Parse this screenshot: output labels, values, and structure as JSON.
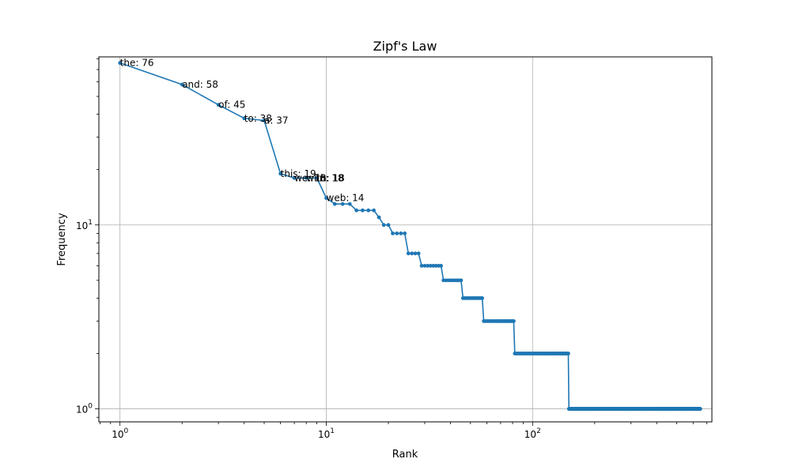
{
  "chart_data": {
    "type": "line",
    "title": "Zipf's Law",
    "xlabel": "Rank",
    "ylabel": "Frequency",
    "xscale": "log",
    "yscale": "log",
    "xlim": [
      0.79,
      740
    ],
    "ylim": [
      0.85,
      82
    ],
    "grid": true,
    "x_ticks": [
      {
        "base": "10",
        "exp": "0",
        "value": 1
      },
      {
        "base": "10",
        "exp": "1",
        "value": 10
      },
      {
        "base": "10",
        "exp": "2",
        "value": 100
      }
    ],
    "y_ticks": [
      {
        "base": "10",
        "exp": "0",
        "value": 1
      },
      {
        "base": "10",
        "exp": "1",
        "value": 10
      }
    ],
    "color": "#1f77b4",
    "steps": [
      {
        "from": 1,
        "to": 1,
        "value": 76
      },
      {
        "from": 2,
        "to": 2,
        "value": 58
      },
      {
        "from": 3,
        "to": 3,
        "value": 45
      },
      {
        "from": 4,
        "to": 4,
        "value": 38
      },
      {
        "from": 5,
        "to": 5,
        "value": 37
      },
      {
        "from": 6,
        "to": 6,
        "value": 19
      },
      {
        "from": 7,
        "to": 9,
        "value": 18
      },
      {
        "from": 10,
        "to": 10,
        "value": 14
      },
      {
        "from": 11,
        "to": 13,
        "value": 13
      },
      {
        "from": 14,
        "to": 17,
        "value": 12
      },
      {
        "from": 18,
        "to": 18,
        "value": 11
      },
      {
        "from": 19,
        "to": 20,
        "value": 10
      },
      {
        "from": 21,
        "to": 24,
        "value": 9
      },
      {
        "from": 25,
        "to": 28,
        "value": 7
      },
      {
        "from": 29,
        "to": 36,
        "value": 6
      },
      {
        "from": 37,
        "to": 45,
        "value": 5
      },
      {
        "from": 46,
        "to": 57,
        "value": 4
      },
      {
        "from": 58,
        "to": 81,
        "value": 3
      },
      {
        "from": 82,
        "to": 149,
        "value": 2
      },
      {
        "from": 150,
        "to": 650,
        "value": 1
      }
    ],
    "annotations": [
      {
        "rank": 1,
        "freq": 76,
        "text": "the: 76"
      },
      {
        "rank": 2,
        "freq": 58,
        "text": "and: 58"
      },
      {
        "rank": 3,
        "freq": 45,
        "text": "of: 45"
      },
      {
        "rank": 4,
        "freq": 38,
        "text": "to: 38"
      },
      {
        "rank": 5,
        "freq": 37,
        "text": "a: 37"
      },
      {
        "rank": 6,
        "freq": 19,
        "text": "this: 19"
      },
      {
        "rank": 7,
        "freq": 18,
        "text": "we: 18"
      },
      {
        "rank": 8,
        "freq": 18,
        "text": "with: 18"
      },
      {
        "rank": 9,
        "freq": 18,
        "text": "in: 18"
      },
      {
        "rank": 10,
        "freq": 14,
        "text": "web: 14"
      }
    ]
  }
}
